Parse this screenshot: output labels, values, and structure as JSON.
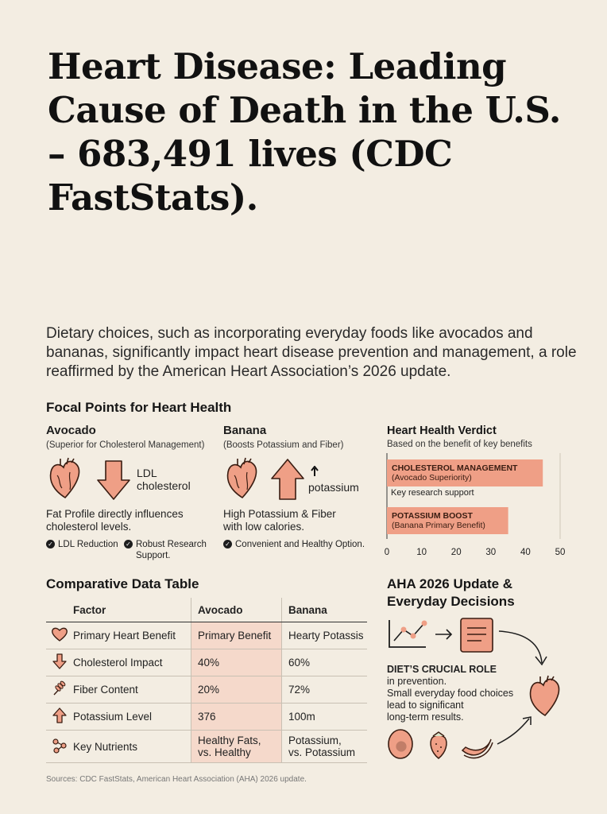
{
  "title": "Heart Disease: Leading Cause of Death in the U.S. – 683,491 lives (CDC FastStats).",
  "intro": "Dietary choices, such as incorporating everyday foods like avocados and bananas, significantly impact heart disease prevention and management, a role reaffirmed by the American Heart Association’s 2026 update.",
  "focal": {
    "heading": "Focal Points for Heart Health",
    "avocado": {
      "name": "Avocado",
      "subtitle": "(Superior for Cholesterol Management)",
      "arrow_label_1": "LDL",
      "arrow_label_2": "cholesterol",
      "description_1": "Fat Profile directly influences",
      "description_2": "cholesterol levels.",
      "check_1": "LDL Reduction",
      "check_2a": "Robust Research",
      "check_2b": "Support."
    },
    "banana": {
      "name": "Banana",
      "subtitle": "(Boosts Potassium and Fiber)",
      "arrow_label": "potassium",
      "description_1": "High Potassium & Fiber",
      "description_2": "with low calories.",
      "check_1": "Convenient and Healthy Option."
    }
  },
  "verdict": {
    "heading": "Heart Health Verdict",
    "subheading": "Based on the benefit of key benefits",
    "middle_label": "Key research support",
    "colors": {
      "bar": "#ef9f86",
      "axis": "#555555"
    }
  },
  "chart_data": {
    "type": "bar",
    "orientation": "horizontal",
    "title": "Heart Health Verdict",
    "subtitle": "Based on the benefit of key benefits",
    "categories": [
      "CHOLESTEROL MANAGEMENT (Avocado Superiority)",
      "POTASSIUM BOOST (Banana Primary Benefit)"
    ],
    "bars": [
      {
        "label": "CHOLESTEROL MANAGEMENT",
        "sublabel": "(Avocado Superiority)",
        "value": 45
      },
      {
        "label": "POTASSIUM BOOST",
        "sublabel": "(Banana Primary Benefit)",
        "value": 35
      }
    ],
    "xlim": [
      0,
      50
    ],
    "xticks": [
      0,
      10,
      20,
      30,
      40,
      50
    ],
    "grid": false
  },
  "table": {
    "heading": "Comparative Data Table",
    "columns": [
      "Factor",
      "Avocado",
      "Banana"
    ],
    "rows": [
      {
        "icon": "heart-icon",
        "factor": "Primary Heart Benefit",
        "avocado": "Primary Benefit",
        "banana": "Hearty Potassis"
      },
      {
        "icon": "down-arrow-icon",
        "factor": "Cholesterol Impact",
        "avocado": "40%",
        "banana": "60%"
      },
      {
        "icon": "wheat-icon",
        "factor": "Fiber Content",
        "avocado": "20%",
        "banana": "72%"
      },
      {
        "icon": "up-arrow-icon",
        "factor": "Potassium Level",
        "avocado": "376",
        "banana": "100m"
      },
      {
        "icon": "nutrients-icon",
        "factor": "Key Nutrients",
        "avocado_1": "Healthy Fats,",
        "avocado_2": "vs. Healthy",
        "banana_1": "Potassium,",
        "banana_2": "vs. Potassium"
      }
    ]
  },
  "aha": {
    "heading_1": "AHA 2026 Update &",
    "heading_2": "Everyday Decisions",
    "role_title": "DIET’S CRUCIAL ROLE",
    "role_line_1": "in prevention.",
    "role_line_2": "Small everyday food choices",
    "role_line_3": "lead to significant",
    "role_line_4": "long-term results."
  },
  "sources": "Sources: CDC FastStats, American Heart Association (AHA) 2026 update.",
  "colors": {
    "accent": "#ef9f86",
    "accent_light": "#f5d9cb",
    "ink": "#1d1d1d",
    "background": "#f3ede2"
  }
}
